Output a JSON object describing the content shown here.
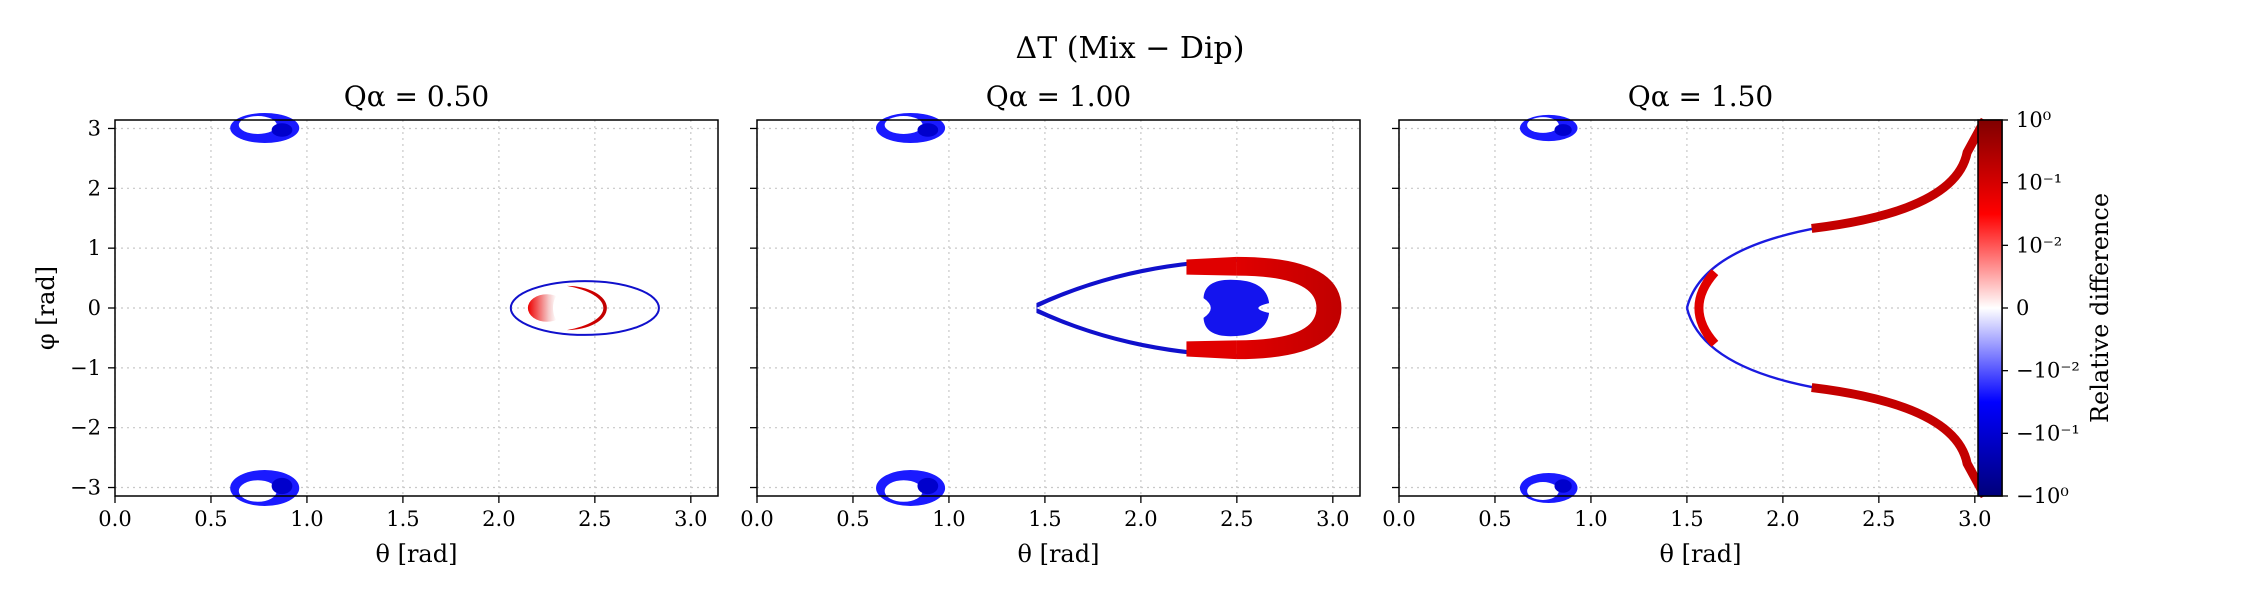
{
  "chart_data": {
    "type": "heatmap",
    "suptitle": "ΔT (Mix − Dip)",
    "panels": [
      {
        "title": "Qα = 0.50",
        "regions": [
          {
            "kind": "crescent",
            "theta": 0.78,
            "phi": 3.1,
            "sign": "neg",
            "rx": 0.18,
            "ry": 0.25
          },
          {
            "kind": "crescent",
            "theta": 0.78,
            "phi": -3.05,
            "sign": "neg",
            "rx": 0.18,
            "ry": 0.3
          },
          {
            "kind": "ring",
            "theta": 2.5,
            "phi": 0.0,
            "sign": "pos",
            "rx": 0.15,
            "ry": 0.45
          },
          {
            "kind": "blob",
            "theta": 2.25,
            "phi": 0.0,
            "sign": "mixed",
            "rx": 0.18,
            "ry": 0.23
          }
        ]
      },
      {
        "title": "Qα = 1.00",
        "regions": [
          {
            "kind": "crescent",
            "theta": 0.8,
            "phi": 3.05,
            "sign": "neg",
            "rx": 0.18,
            "ry": 0.25
          },
          {
            "kind": "crescent",
            "theta": 0.8,
            "phi": -3.0,
            "sign": "neg",
            "rx": 0.18,
            "ry": 0.3
          },
          {
            "kind": "ring",
            "theta": 2.55,
            "phi": 0.0,
            "sign": "pos",
            "rx": 0.28,
            "ry": 0.9
          },
          {
            "kind": "blob",
            "theta": 2.5,
            "phi": 0.0,
            "sign": "neg",
            "rx": 0.28,
            "ry": 0.55
          }
        ]
      },
      {
        "title": "Qα = 1.50",
        "regions": [
          {
            "kind": "crescent",
            "theta": 0.78,
            "phi": 3.1,
            "sign": "neg",
            "rx": 0.15,
            "ry": 0.22
          },
          {
            "kind": "crescent",
            "theta": 0.78,
            "phi": -3.05,
            "sign": "neg",
            "rx": 0.15,
            "ry": 0.25
          },
          {
            "kind": "curve",
            "vertex_theta": 1.5,
            "sign": "mixed"
          }
        ]
      }
    ],
    "xlabel": "θ [rad]",
    "ylabel": "φ [rad]",
    "xlim": [
      0.0,
      3.14159
    ],
    "ylim": [
      -3.14159,
      3.14159
    ],
    "xticks": [
      0.0,
      0.5,
      1.0,
      1.5,
      2.0,
      2.5,
      3.0
    ],
    "xtick_labels": [
      "0.0",
      "0.5",
      "1.0",
      "1.5",
      "2.0",
      "2.5",
      "3.0"
    ],
    "yticks": [
      3,
      2,
      1,
      0,
      -1,
      -2,
      -3
    ],
    "ytick_labels": [
      "3",
      "2",
      "1",
      "0",
      "−1",
      "−2",
      "−3"
    ],
    "grid": true,
    "colorbar": {
      "label": "Relative difference",
      "scale": "symlog",
      "ticks": [
        1,
        0.1,
        0.01,
        0,
        -0.01,
        -0.1,
        -1
      ],
      "tick_labels": [
        "10⁰",
        "10⁻¹",
        "10⁻²",
        "0",
        "−10⁻²",
        "−10⁻¹",
        "−10⁰"
      ],
      "colors": [
        "#800000",
        "#ff0000",
        "#ffffff",
        "#0000ff",
        "#00007a"
      ]
    }
  }
}
